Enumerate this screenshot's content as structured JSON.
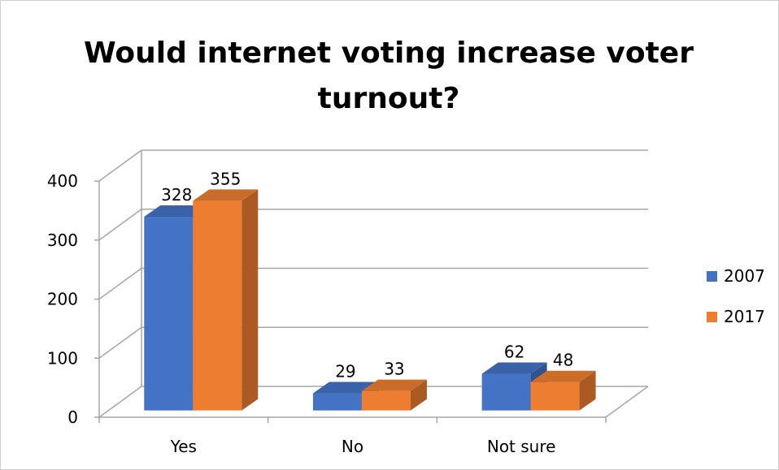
{
  "chart_data": {
    "type": "bar",
    "title_lines": [
      "Would internet voting increase voter",
      "turnout?"
    ],
    "categories": [
      "Yes",
      "No",
      "Not sure"
    ],
    "series": [
      {
        "name": "2007",
        "values": [
          328,
          29,
          62
        ],
        "color": "#4472C4"
      },
      {
        "name": "2017",
        "values": [
          355,
          33,
          48
        ],
        "color": "#ED7D31"
      }
    ],
    "yticks": [
      0,
      100,
      200,
      300,
      400
    ],
    "ylim": [
      0,
      400
    ],
    "legend_position": "right",
    "grid": true,
    "style": "3d-clustered-column"
  }
}
